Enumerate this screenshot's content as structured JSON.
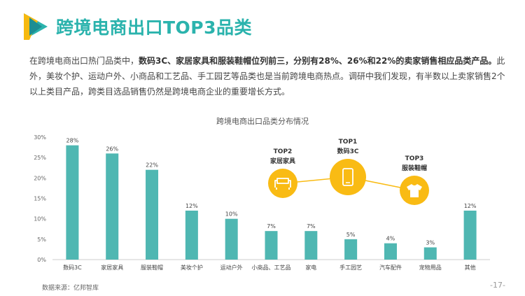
{
  "header": {
    "title": "跨境电商出口TOP3品类"
  },
  "intro": {
    "part1": "在跨境电商出口热门品类中，",
    "bold": "数码3C、家居家具和服装鞋帽位列前三，分别有28%、26%和22%的卖家销售相应品类产品。",
    "part2": "此外，美妆个护、运动户外、小商品和工艺品、手工园艺等品类也是当前跨境电商热点。调研中我们发现，有半数以上卖家销售2个以上类目产品，跨类目选品销售仍然是跨境电商企业的重要增长方式。"
  },
  "chart_data": {
    "type": "bar",
    "title": "跨境电商出口品类分布情况",
    "categories": [
      "数码3C",
      "家居家具",
      "服装鞋帽",
      "美妆个护",
      "运动户外",
      "小商品、工艺品",
      "家电",
      "手工园艺",
      "汽车配件",
      "宠物用品",
      "其他"
    ],
    "values": [
      28,
      26,
      22,
      12,
      10,
      7,
      7,
      5,
      4,
      3,
      12
    ],
    "value_labels": [
      "28%",
      "26%",
      "22%",
      "12%",
      "10%",
      "7%",
      "7%",
      "5%",
      "4%",
      "3%",
      "12%"
    ],
    "y_ticks": [
      0,
      5,
      10,
      15,
      20,
      25,
      30
    ],
    "y_tick_labels": [
      "0%",
      "5%",
      "10%",
      "15%",
      "20%",
      "25%",
      "30%"
    ],
    "ylim": [
      0,
      30
    ],
    "bar_color": "#4fb7b2",
    "grid": false
  },
  "top3": {
    "color": "#f9bb14",
    "items": [
      {
        "rank": "TOP1",
        "name": "数码3C",
        "icon": "smartphone-icon"
      },
      {
        "rank": "TOP2",
        "name": "家居家具",
        "icon": "sofa-icon"
      },
      {
        "rank": "TOP3",
        "name": "服装鞋帽",
        "icon": "tshirt-icon"
      }
    ]
  },
  "footer": {
    "source": "数据来源：亿邦智库",
    "page": "-17-"
  }
}
